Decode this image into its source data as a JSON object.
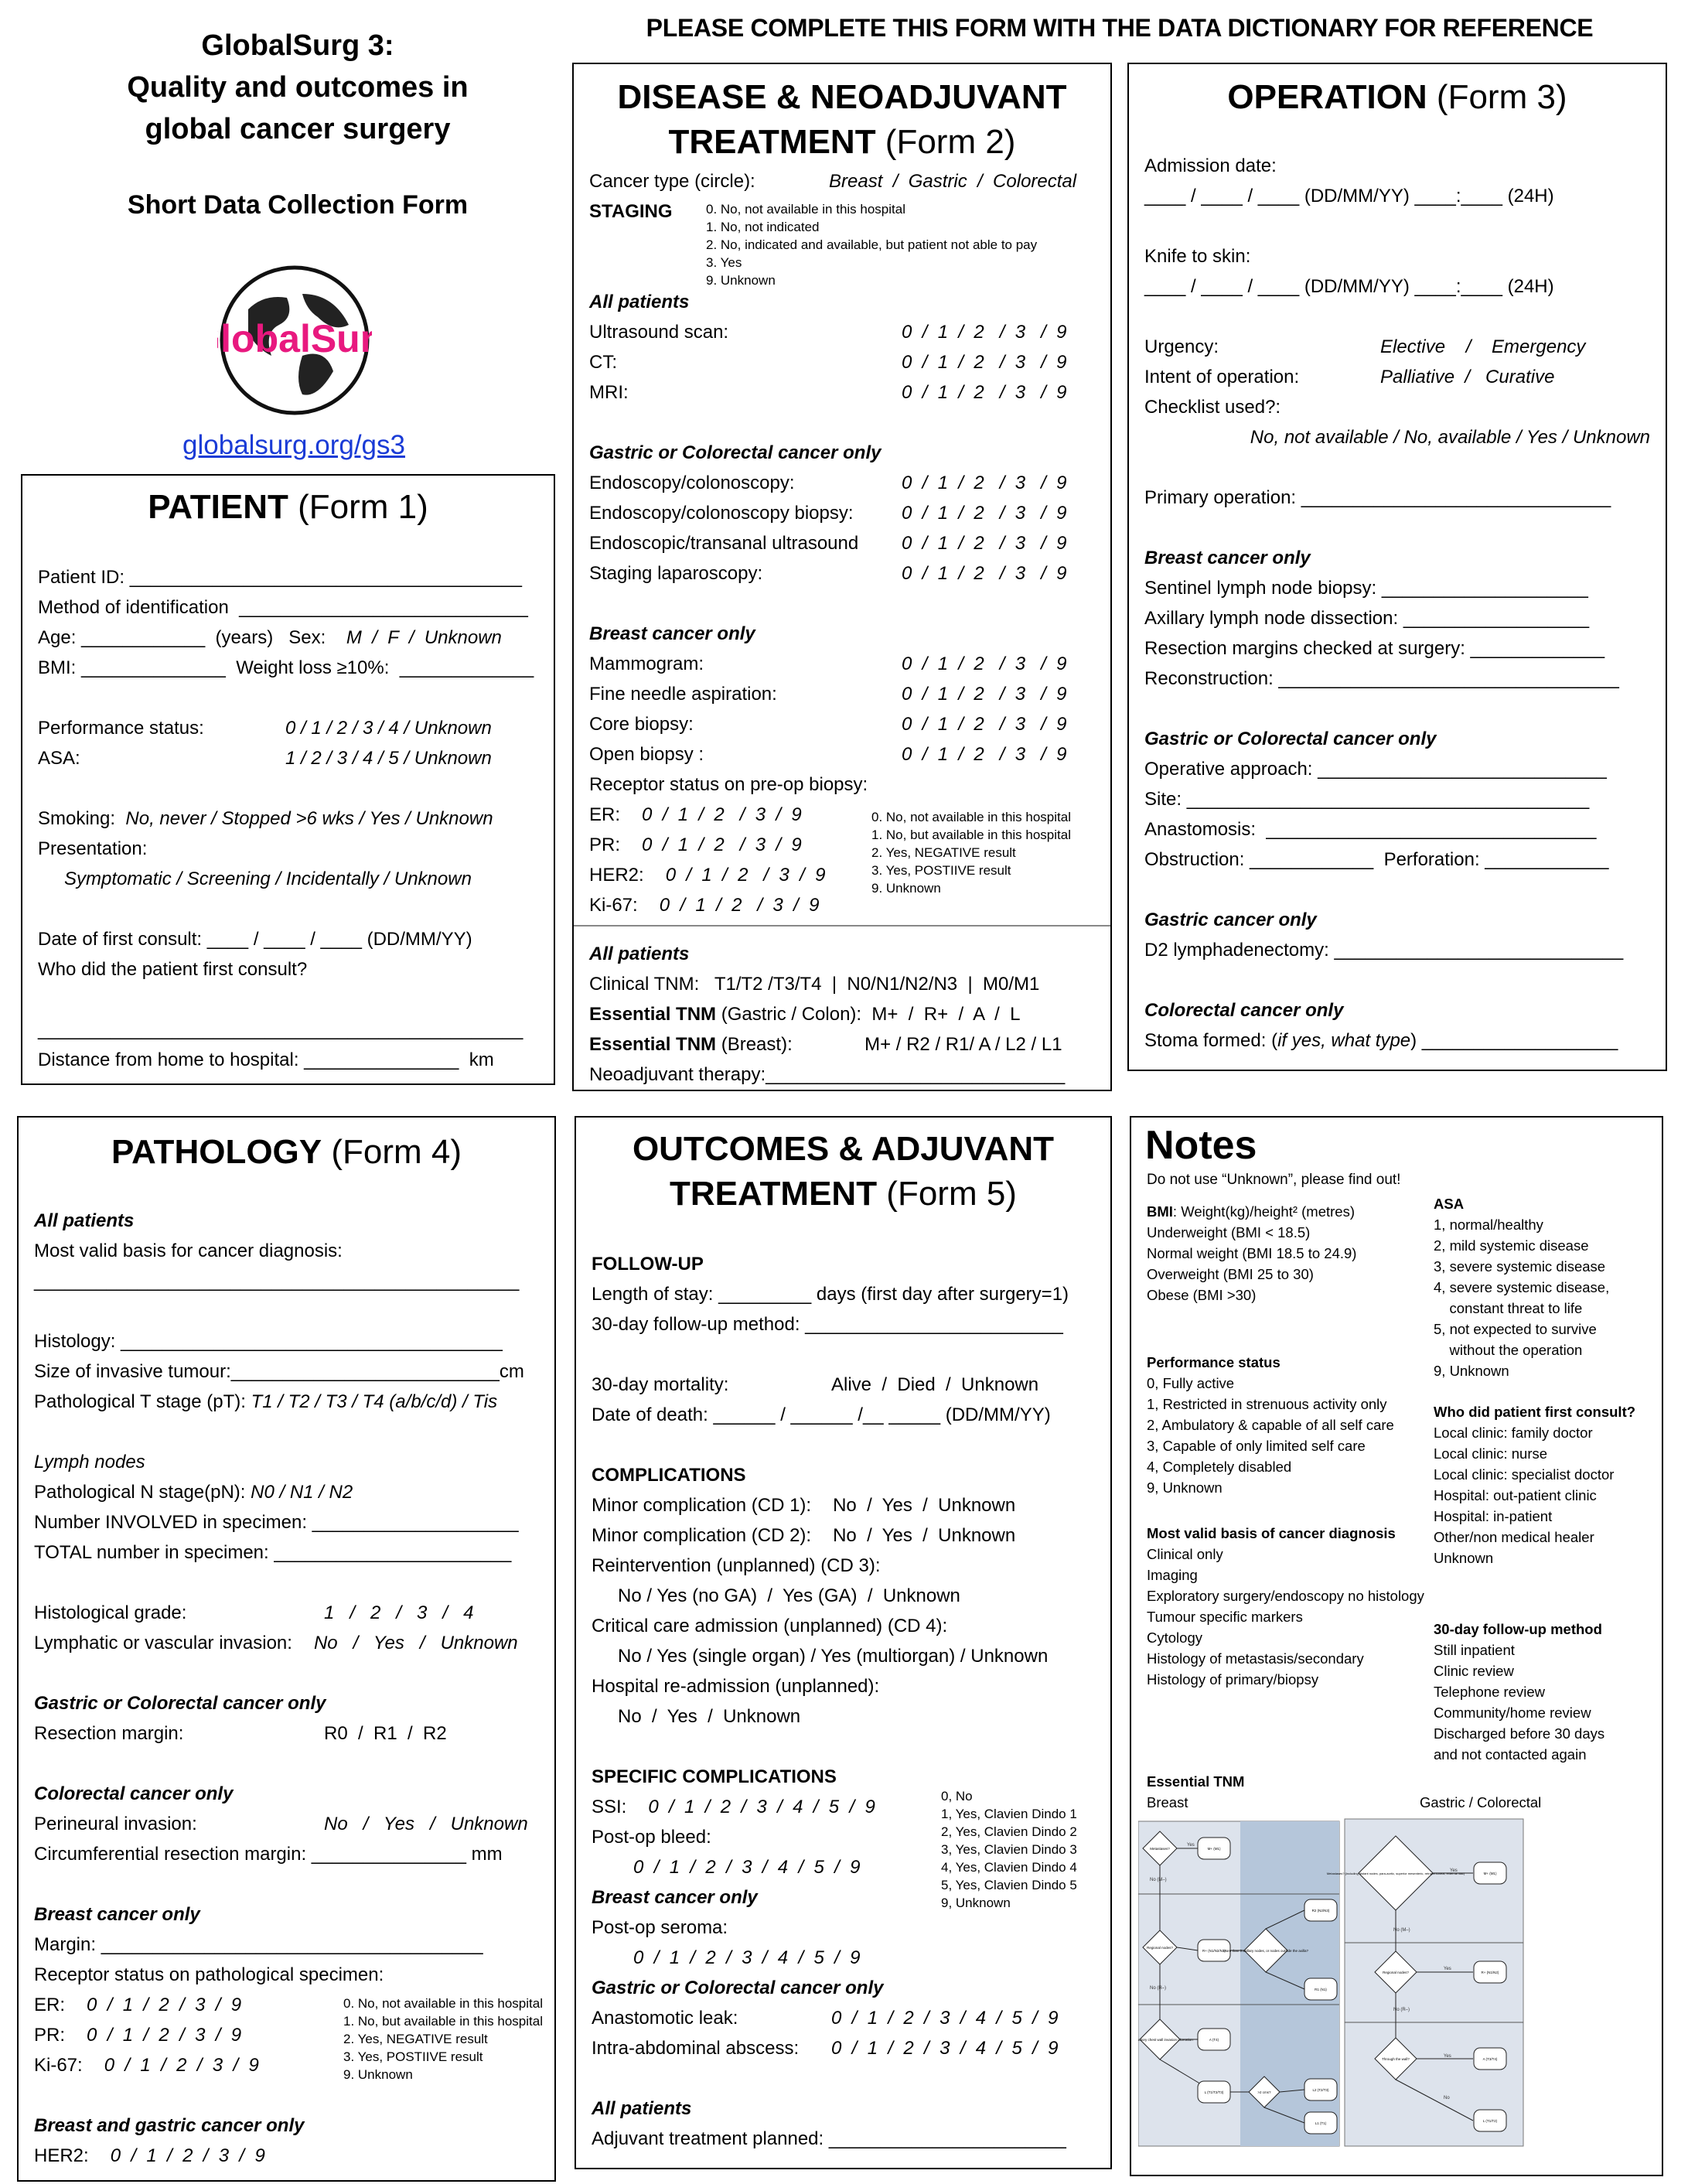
{
  "header": {
    "title_lines": [
      "GlobalSurg 3:",
      "Quality and outcomes in",
      "global cancer surgery"
    ],
    "subtitle": "Short Data Collection Form",
    "logo_text": "GlobalSurg",
    "logo_color": "#e8197f",
    "link": "globalsurg.org/gs3",
    "banner": "PLEASE COMPLETE THIS FORM WITH THE DATA DICTIONARY FOR REFERENCE"
  },
  "forms": {
    "patient": {
      "title_bold": "PATIENT",
      "title_form": " (Form 1)",
      "rows": [
        {
          "text": "Patient ID: ______________________________________"
        },
        {
          "text": "Method of identification  ____________________________"
        },
        {
          "parts": [
            {
              "t": "Age: ____________  (years)   Sex:    "
            },
            {
              "t": "M  /  F  /  Unknown",
              "s": "i"
            }
          ]
        },
        {
          "text": "BMI: ______________  Weight loss ≥10%:  _____________"
        },
        {
          "gap": true
        },
        {
          "label": "Performance status:",
          "opts": "0 / 1 / 2 / 3 / 4 / Unknown"
        },
        {
          "label": "ASA:",
          "opts": "1 / 2 / 3 / 4 / 5 / Unknown"
        },
        {
          "gap": true
        },
        {
          "parts": [
            {
              "t": "Smoking:  "
            },
            {
              "t": "No, never / Stopped >6 wks / Yes / Unknown",
              "s": "i"
            }
          ]
        },
        {
          "text": "Presentation:"
        },
        {
          "indent": "Symptomatic / Screening / Incidentally / Unknown",
          "s": "i"
        },
        {
          "gap": true
        },
        {
          "text": "Date of first consult: ____ / ____ / ____ (DD/MM/YY)"
        },
        {
          "text": "Who did the patient first consult?"
        },
        {
          "gap": true
        },
        {
          "text": "_______________________________________________"
        },
        {
          "text": "Distance from home to hospital: _______________  km"
        }
      ]
    },
    "disease": {
      "title_line1": "DISEASE & NEOADJUVANT",
      "title_bold": "TREATMENT",
      "title_form": " (Form 2)",
      "rows": [
        {
          "label": "Cancer type (circle):",
          "opts": "Breast  /  Gastric  /  Colorectal",
          "col2": true
        },
        {
          "head": "STAGING"
        },
        {
          "gap": true
        },
        {
          "gap": true
        },
        {
          "sub": "All patients"
        },
        {
          "label": "Ultrasound scan:",
          "opts": "0  /  1  /  2   /  3   /  9"
        },
        {
          "label": "CT:",
          "opts": "0  /  1  /  2   /  3   /  9"
        },
        {
          "label": "MRI:",
          "opts": "0  /  1  /  2   /  3   /  9"
        },
        {
          "gap": true
        },
        {
          "sub": "Gastric or Colorectal cancer only"
        },
        {
          "label": "Endoscopy/colonoscopy:",
          "opts": "0  /  1  /  2   /  3   /  9"
        },
        {
          "label": "Endoscopy/colonoscopy biopsy:",
          "opts": "0  /  1  /  2   /  3   /  9"
        },
        {
          "label": "Endoscopic/transanal ultrasound",
          "opts": "0  /  1  /  2   /  3   /  9"
        },
        {
          "label": "Staging laparoscopy:",
          "opts": "0  /  1  /  2   /  3   /  9"
        },
        {
          "gap": true
        },
        {
          "sub": "Breast cancer only"
        },
        {
          "label": "Mammogram:",
          "opts": "0  /  1  /  2   /  3   /  9"
        },
        {
          "label": "Fine needle aspiration:",
          "opts": "0  /  1  /  2   /  3   /  9"
        },
        {
          "label": "Core biopsy:",
          "opts": "0  /  1  /  2   /  3   /  9"
        },
        {
          "label": "Open biopsy :",
          "opts": "0  /  1  /  2   /  3   /  9"
        },
        {
          "text": "Receptor status on pre-op biopsy:"
        },
        {
          "label": "ER:",
          "opts": "0  /  1  /  2   /  3  /  9",
          "inline": true
        },
        {
          "label": "PR:",
          "opts": "0  /  1  /  2   /  3  /  9",
          "inline": true
        },
        {
          "label": "HER2:",
          "opts": "0  /  1  /  2   /  3  /  9",
          "inline": true
        },
        {
          "label": "Ki-67:",
          "opts": "0  /  1  /  2   /  3  /  9",
          "inline": true
        },
        {
          "divider": true
        },
        {
          "sub": "All patients"
        },
        {
          "text": "Clinical TNM:   T1/T2 /T3/T4  |  N0/N1/N2/N3  |  M0/M1"
        },
        {
          "parts": [
            {
              "t": "Essential TNM",
              "s": "b"
            },
            {
              "t": " (Gastric / Colon):  M+  /  R+  /  A  /  L"
            }
          ]
        },
        {
          "parts": [
            {
              "t": "Essential TNM",
              "s": "b"
            },
            {
              "t": " (Breast):              M+ / R2 / R1/ A / L2 / L1"
            }
          ]
        },
        {
          "text": "Neoadjuvant therapy:_____________________________"
        }
      ],
      "staging_legend": [
        "0. No, not available in this hospital",
        "1. No, not indicated",
        "2. No, indicated and available, but patient not able to pay",
        "3. Yes",
        "9. Unknown"
      ],
      "receptor_legend": [
        "0. No, not available in this hospital",
        "1. No, but available in this hospital",
        "2. Yes, NEGATIVE result",
        "3. Yes, POSTIIVE result",
        "9. Unknown"
      ]
    },
    "operation": {
      "title_bold": "OPERATION",
      "title_form": " (Form 3)",
      "rows": [
        {
          "text": "Admission date:"
        },
        {
          "text": "____ / ____ / ____ (DD/MM/YY) ____:____ (24H)"
        },
        {
          "gap": true
        },
        {
          "text": "Knife to skin:"
        },
        {
          "text": "____ / ____ / ____ (DD/MM/YY) ____:____ (24H)"
        },
        {
          "gap": true
        },
        {
          "label": "Urgency:",
          "opts": "Elective    /    Emergency"
        },
        {
          "label": "Intent of operation:",
          "opts": "Palliative  /   Curative"
        },
        {
          "text": "Checklist used?:"
        },
        {
          "right": "No, not available / No, available / Yes / Unknown"
        },
        {
          "gap": true
        },
        {
          "text": "Primary operation: ______________________________"
        },
        {
          "gap": true
        },
        {
          "sub": "Breast cancer only"
        },
        {
          "text": "Sentinel lymph node biopsy: ____________________"
        },
        {
          "text": "Axillary lymph node dissection: __________________"
        },
        {
          "text": "Resection margins checked at surgery: _____________"
        },
        {
          "text": "Reconstruction: _________________________________"
        },
        {
          "gap": true
        },
        {
          "sub": "Gastric or Colorectal cancer only"
        },
        {
          "text": "Operative approach: ____________________________"
        },
        {
          "text": "Site: _______________________________________"
        },
        {
          "text": "Anastomosis:  ________________________________"
        },
        {
          "text": "Obstruction: ____________  Perforation: ____________"
        },
        {
          "gap": true
        },
        {
          "sub": "Gastric cancer only"
        },
        {
          "text": "D2 lymphadenectomy: ____________________________"
        },
        {
          "gap": true
        },
        {
          "sub": "Colorectal cancer only"
        },
        {
          "parts": [
            {
              "t": "Stoma formed: ("
            },
            {
              "t": "if yes, what type",
              "s": "i"
            },
            {
              "t": ") ___________________"
            }
          ]
        }
      ]
    },
    "pathology": {
      "title_bold": "PATHOLOGY",
      "title_form": " (Form 4)",
      "rows": [
        {
          "gap": true
        },
        {
          "sub": "All patients"
        },
        {
          "text": "Most valid basis for cancer diagnosis:"
        },
        {
          "text": "_______________________________________________"
        },
        {
          "gap": true
        },
        {
          "text": "Histology: _____________________________________"
        },
        {
          "text": "Size of invasive tumour:__________________________cm"
        },
        {
          "parts": [
            {
              "t": "Pathological T stage (pT): "
            },
            {
              "t": "T1 / T2 / T3 / T4 (a/b/c/d) / Tis",
              "s": "i"
            }
          ]
        },
        {
          "gap": true
        },
        {
          "parts": [
            {
              "t": "Lymph nodes",
              "s": "i"
            }
          ]
        },
        {
          "parts": [
            {
              "t": "Pathological N stage(pN): "
            },
            {
              "t": "N0 / N1 / N2",
              "s": "i"
            }
          ]
        },
        {
          "text": "Number INVOLVED in specimen: ____________________"
        },
        {
          "text": "TOTAL number in specimen: _______________________"
        },
        {
          "gap": true
        },
        {
          "label": "Histological grade:",
          "opts": "1   /   2   /   3   /   4"
        },
        {
          "label": "Lymphatic or vascular invasion:",
          "opts": "No   /   Yes   /   Unknown",
          "inline": true
        },
        {
          "gap": true
        },
        {
          "sub": "Gastric or Colorectal cancer only"
        },
        {
          "label": "Resection margin:",
          "opts": "R0  /  R1  /  R2",
          "plain": true
        },
        {
          "gap": true
        },
        {
          "sub": "Colorectal cancer only"
        },
        {
          "label": "Perineural invasion:",
          "opts": "No   /   Yes   /   Unknown"
        },
        {
          "text": "Circumferential resection margin: _______________ mm"
        },
        {
          "gap": true
        },
        {
          "sub": "Breast cancer only"
        },
        {
          "text": "Margin: _____________________________________"
        },
        {
          "text": "Receptor status on pathological specimen:"
        },
        {
          "label": "ER:",
          "opts": "0  /  1  /  2  /  3  /  9",
          "inline": true
        },
        {
          "label": "PR:",
          "opts": "0  /  1  /  2  /  3  /  9",
          "inline": true
        },
        {
          "label": "Ki-67:",
          "opts": "0  /  1  /  2  /  3  /  9",
          "inline": true
        },
        {
          "gap": true
        },
        {
          "sub": "Breast and gastric cancer only"
        },
        {
          "label": "HER2:",
          "opts": "0  /  1  /  2  /  3  /  9",
          "inline": true
        }
      ],
      "receptor_legend": [
        "0. No, not available in this hospital",
        "1. No, but available in this hospital",
        "2. Yes, NEGATIVE result",
        "3. Yes, POSTIIVE result",
        "9. Unknown"
      ]
    },
    "outcomes": {
      "title_line1": "OUTCOMES & ADJUVANT",
      "title_bold": "TREATMENT",
      "title_form": " (Form 5)",
      "rows": [
        {
          "head": "FOLLOW-UP"
        },
        {
          "text": "Length of stay: _________ days (first day after surgery=1)"
        },
        {
          "text": "30-day follow-up method: _________________________"
        },
        {
          "gap": true
        },
        {
          "label": "30-day mortality:",
          "opts": "Alive  /  Died  /  Unknown",
          "plain": true
        },
        {
          "text": "Date of death: ______ / ______ /__ _____ (DD/MM/YY)"
        },
        {
          "gap": true
        },
        {
          "head": "COMPLICATIONS"
        },
        {
          "label": "Minor complication (CD 1):",
          "opts": "No  /  Yes  /  Unknown",
          "plain": true,
          "inline": true
        },
        {
          "label": "Minor complication (CD 2):",
          "opts": "No  /  Yes  /  Unknown",
          "plain": true,
          "inline": true
        },
        {
          "text": "Reintervention (unplanned) (CD 3):"
        },
        {
          "indent": "No / Yes (no GA)  /  Yes (GA)  /  Unknown"
        },
        {
          "text": "Critical care admission (unplanned) (CD 4):"
        },
        {
          "indent": "No / Yes (single organ) / Yes (multiorgan) / Unknown"
        },
        {
          "text": "Hospital re-admission (unplanned):"
        },
        {
          "indent": "No  /  Yes  /  Unknown"
        },
        {
          "gap": true
        },
        {
          "head": "SPECIFIC COMPLICATIONS"
        },
        {
          "label": "SSI:",
          "opts": "0  /  1  /  2  /  3  /  4  /  5  /  9",
          "inline": true
        },
        {
          "text": "Post-op bleed:"
        },
        {
          "indent": "   0  /  1  /  2  /  3  /  4  /  5  /  9",
          "s": "i"
        },
        {
          "sub": "Breast cancer only"
        },
        {
          "text": "Post-op seroma:"
        },
        {
          "indent": "   0  /  1  /  2  /  3  /  4  /  5  /  9",
          "s": "i"
        },
        {
          "sub": "Gastric or Colorectal cancer only"
        },
        {
          "label": "Anastomotic leak:",
          "opts": "0  /  1  /  2  /  3  /  4  /  5  /  9"
        },
        {
          "label": "Intra-abdominal abscess:",
          "opts": "0  /  1  /  2  /  3  /  4  /  5  /  9"
        },
        {
          "gap": true
        },
        {
          "sub": "All patients"
        },
        {
          "text": "Adjuvant treatment planned: _______________________"
        }
      ],
      "cd_legend": [
        "0, No",
        "1, Yes, Clavien Dindo 1",
        "2, Yes, Clavien Dindo 2",
        "3, Yes, Clavien Dindo 3",
        "4, Yes, Clavien Dindo 4",
        "5, Yes, Clavien Dindo 5",
        "9, Unknown"
      ]
    }
  },
  "notes": {
    "title": "Notes",
    "intro": "Do not use “Unknown”, please find out!",
    "bmi": {
      "label": "BMI",
      "formula": ": Weight(kg)/height² (metres)",
      "items": [
        "Underweight (BMI < 18.5)",
        "Normal weight (BMI 18.5 to 24.9)",
        "Overweight (BMI 25 to 30)",
        "Obese (BMI >30)"
      ]
    },
    "asa": {
      "title": "ASA",
      "items": [
        "1, normal/healthy",
        "2, mild systemic disease",
        "3, severe systemic disease",
        "4, severe systemic disease,",
        "    constant threat to life",
        "5, not expected to survive",
        "    without the operation",
        "9, Unknown"
      ]
    },
    "performance": {
      "title": "Performance status",
      "items": [
        "0, Fully active",
        "1, Restricted in strenuous activity only",
        "2, Ambulatory & capable of all self care",
        "3, Capable of only limited self care",
        "4, Completely disabled",
        "9, Unknown"
      ]
    },
    "consult": {
      "title": "Who did patient first consult?",
      "items": [
        "Local clinic: family doctor",
        "Local clinic: nurse",
        "Local clinic: specialist doctor",
        "Hospital: out-patient clinic",
        "Hospital: in-patient",
        "Other/non medical healer",
        "Unknown"
      ]
    },
    "basis": {
      "title": "Most valid basis of cancer diagnosis",
      "items": [
        "Clinical only",
        "Imaging",
        "Exploratory surgery/endoscopy no histology",
        "Tumour specific markers",
        "Cytology",
        "Histology of metastasis/secondary",
        "Histology of primary/biopsy"
      ]
    },
    "followup": {
      "title": "30-day follow-up method",
      "items": [
        "Still inpatient",
        "Clinic review",
        "Telephone review",
        "Community/home review",
        "Discharged before 30 days",
        "and not contacted again"
      ]
    },
    "tnm": {
      "title": "Essential TNM",
      "breast_label": "Breast",
      "gastric_label": "Gastric / Colorectal",
      "panel_color": "#dde3ec",
      "panel_dark": "#b5c6da",
      "breast_nodes": [
        "Metastases?",
        "M+ (M1)",
        "Regional nodes?",
        "R+ (N1/N2/N3)",
        "More than 3 axillary nodes, or nodes outside the axilla?",
        "R2 (N2/N3)",
        "R1 (N1)",
        "Inflammatory chest wall invasion ulceration",
        "A (T4)",
        "L (T1/T2/T3)",
        ">2 cms?",
        "L2 (T2/T3)",
        "L1 (T1)"
      ],
      "gastric_nodes": [
        "Metastases? (including distant nodes, para-aortic, superior mesenteric, retroperitoneal, external iliac)",
        "M+ (M1)",
        "Regional nodes?",
        "R+ (N1/N2)",
        "Through the wall?",
        "A (T3/T4)",
        "L (T1/T2)"
      ],
      "edge_labels": [
        "Yes",
        "No",
        "No (M–)",
        "No (R–)"
      ]
    }
  }
}
